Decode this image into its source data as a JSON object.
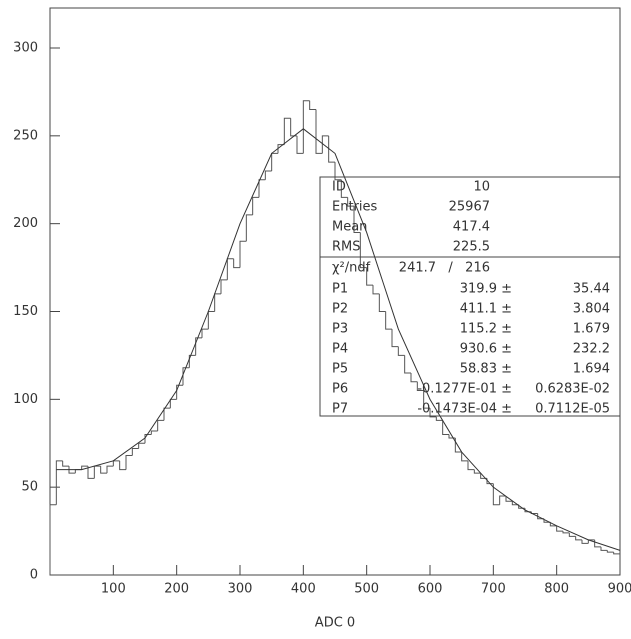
{
  "chart_data": {
    "type": "histogram",
    "xlabel": "ADC 0",
    "bins": [
      0,
      10,
      20,
      30,
      40,
      50,
      60,
      70,
      80,
      90,
      100,
      110,
      120,
      130,
      140,
      150,
      160,
      170,
      180,
      190,
      200,
      210,
      220,
      230,
      240,
      250,
      260,
      270,
      280,
      290,
      300,
      310,
      320,
      330,
      340,
      350,
      360,
      370,
      380,
      390,
      400,
      410,
      420,
      430,
      440,
      450,
      460,
      470,
      480,
      490,
      500,
      510,
      520,
      530,
      540,
      550,
      560,
      570,
      580,
      590,
      600,
      610,
      620,
      630,
      640,
      650,
      660,
      670,
      680,
      690,
      700,
      710,
      720,
      730,
      740,
      750,
      760,
      770,
      780,
      790,
      800,
      810,
      820,
      830,
      840,
      850,
      860,
      870,
      880,
      890,
      900
    ],
    "values": [
      40,
      65,
      62,
      58,
      60,
      62,
      55,
      62,
      58,
      62,
      65,
      60,
      68,
      72,
      75,
      80,
      82,
      88,
      95,
      100,
      108,
      118,
      125,
      135,
      140,
      150,
      160,
      168,
      180,
      175,
      190,
      205,
      215,
      225,
      230,
      240,
      245,
      260,
      250,
      240,
      270,
      265,
      240,
      250,
      235,
      225,
      215,
      210,
      195,
      175,
      165,
      160,
      150,
      140,
      130,
      125,
      115,
      110,
      105,
      95,
      90,
      88,
      80,
      78,
      70,
      65,
      60,
      58,
      55,
      52,
      40,
      45,
      42,
      40,
      38,
      36,
      35,
      32,
      30,
      28,
      25,
      24,
      22,
      20,
      18,
      20,
      16,
      14,
      13,
      12
    ],
    "color": "#555555",
    "fit": {
      "color": "#333333",
      "x": [
        10,
        50,
        100,
        150,
        200,
        250,
        300,
        350,
        400,
        450,
        500,
        550,
        600,
        650,
        700,
        750,
        800,
        850,
        900
      ],
      "values": [
        60,
        60,
        65,
        78,
        105,
        150,
        200,
        240,
        254,
        240,
        195,
        140,
        100,
        70,
        50,
        37,
        28,
        20,
        14
      ]
    },
    "xlim": [
      0,
      900
    ],
    "xticks": [
      100,
      200,
      300,
      400,
      500,
      600,
      700,
      800,
      900
    ],
    "ylim": [
      0,
      300
    ],
    "yticks": [
      0,
      50,
      100,
      150,
      200,
      250,
      300
    ]
  },
  "stats_box": {
    "summary": [
      {
        "label": "ID",
        "value": "10"
      },
      {
        "label": "Entries",
        "value": "25967"
      },
      {
        "label": "Mean",
        "value": "417.4"
      },
      {
        "label": "RMS",
        "value": "225.5"
      }
    ],
    "chi2": {
      "label": "χ²/ndf",
      "value": "241.7   /   216"
    },
    "params": [
      {
        "name": "P1",
        "value": "319.9 ±",
        "error": "35.44"
      },
      {
        "name": "P2",
        "value": "411.1 ±",
        "error": "3.804"
      },
      {
        "name": "P3",
        "value": "115.2 ±",
        "error": "1.679"
      },
      {
        "name": "P4",
        "value": "930.6 ±",
        "error": "232.2"
      },
      {
        "name": "P5",
        "value": "58.83 ±",
        "error": "1.694"
      },
      {
        "name": "P6",
        "value": "-0.1277E-01 ±",
        "error": "0.6283E-02"
      },
      {
        "name": "P7",
        "value": "-0.1473E-04 ±",
        "error": "0.7112E-05"
      }
    ]
  }
}
